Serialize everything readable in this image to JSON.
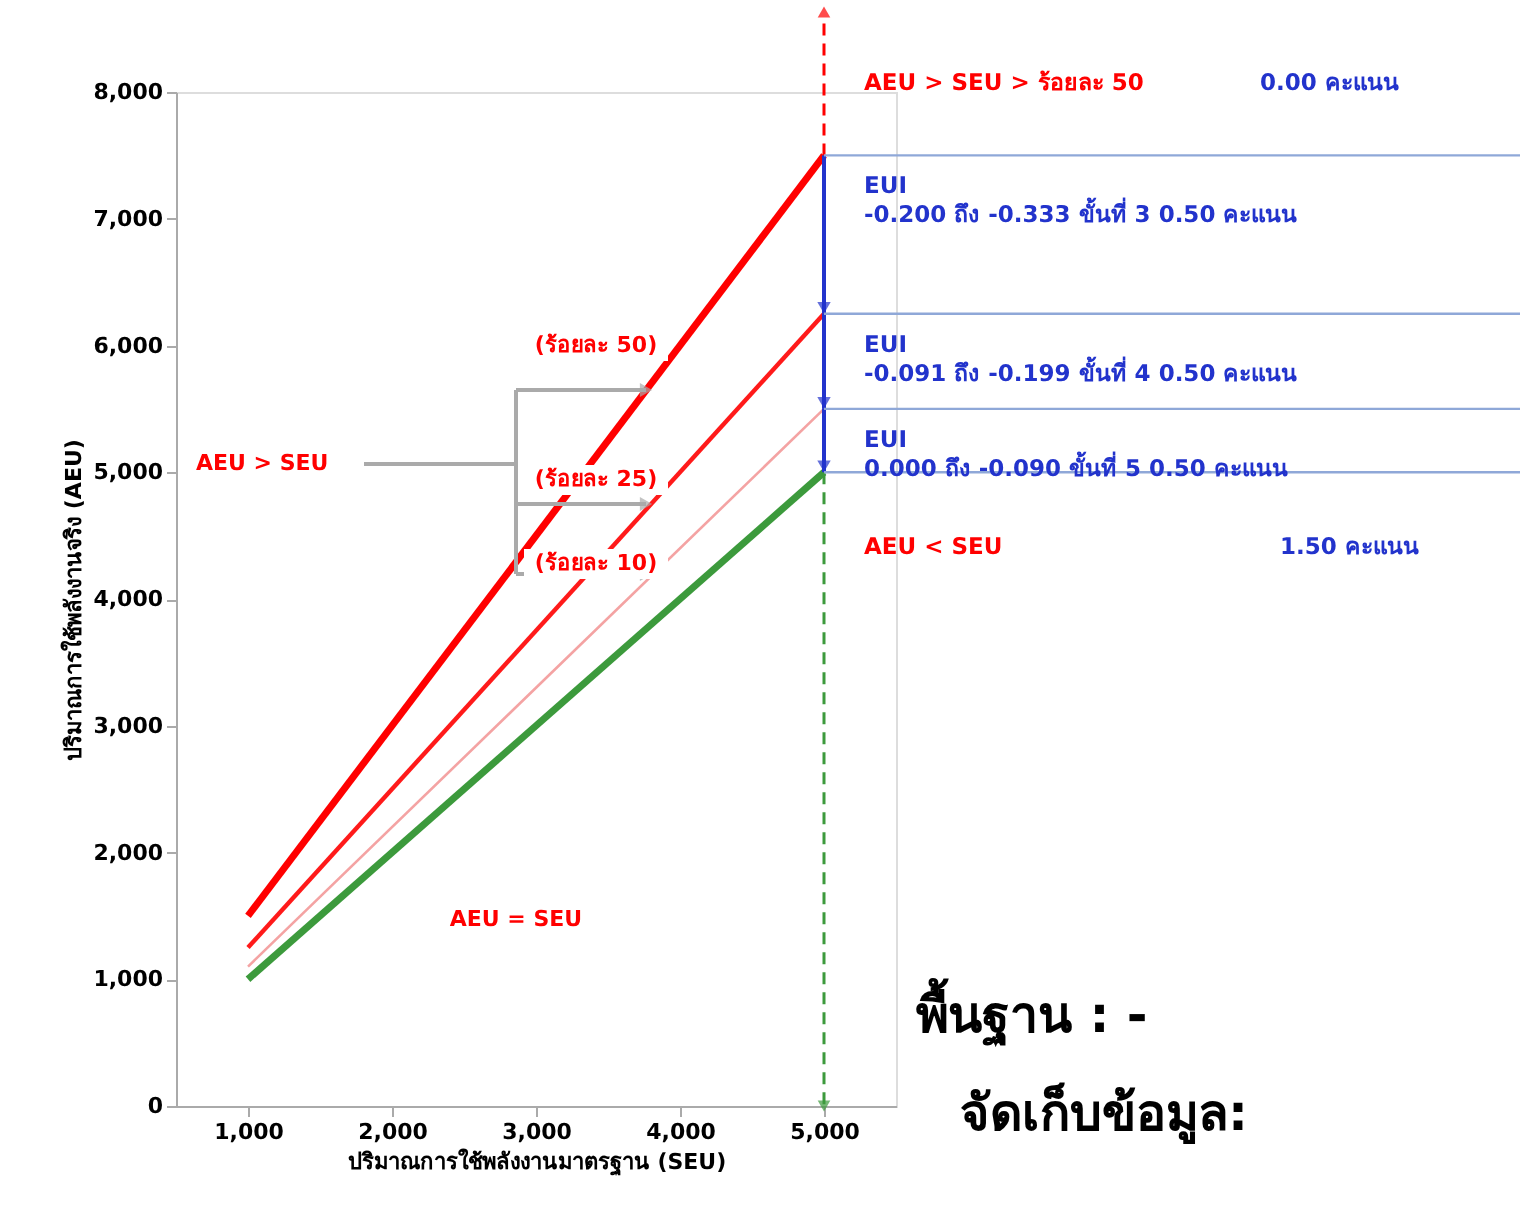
{
  "chart_data": {
    "type": "line",
    "xlabel": "ปริมาณการใช้พลังงานมาตรฐาน (SEU)",
    "ylabel": "ปริมาณการใช้พลังงานจริง (AEU)",
    "x": [
      1000,
      5000
    ],
    "series": [
      {
        "color": "#ff0000",
        "values": [
          1500,
          7500
        ]
      },
      {
        "color": "#ff1a1a",
        "values": [
          1250,
          6250
        ]
      },
      {
        "color": "#f4a3a3",
        "values": [
          1100,
          5500
        ]
      },
      {
        "color": "#3c9a3c",
        "values": [
          1000,
          5000
        ]
      }
    ],
    "xlim": [
      500,
      5500
    ],
    "xticks": [
      {
        "value": 1000,
        "label": "1,000"
      },
      {
        "value": 2000,
        "label": "2,000"
      },
      {
        "value": 3000,
        "label": "3,000"
      },
      {
        "value": 4000,
        "label": "4,000"
      },
      {
        "value": 5000,
        "label": "5,000"
      }
    ],
    "ylim": [
      0,
      8000
    ],
    "yticks": [
      0,
      {
        "value": 1000,
        "label": "1,000"
      },
      {
        "value": 2000,
        "label": "2,000"
      },
      {
        "value": 3000,
        "label": "3,000"
      },
      {
        "value": 4000,
        "label": "4,000"
      },
      {
        "value": 5000,
        "label": "5,000"
      },
      {
        "value": 6000,
        "label": "6,000"
      },
      {
        "value": 7000,
        "label": "7,000"
      },
      {
        "value": 8000,
        "label": "8,000"
      }
    ],
    "ref_lines": [
      {
        "axis": "y",
        "value": 7500,
        "label": null,
        "color": "#8fa8d8",
        "line_style": "solid"
      },
      {
        "axis": "y",
        "value": 6250,
        "label": null,
        "color": "#8fa8d8",
        "line_style": "solid"
      },
      {
        "axis": "y",
        "value": 5500,
        "label": null,
        "color": "#8fa8d8",
        "line_style": "solid"
      },
      {
        "axis": "y",
        "value": 5000,
        "label": null,
        "color": "#8fa8d8",
        "line_style": "solid"
      }
    ],
    "grid": false,
    "marker": "none",
    "line_style": "solid",
    "annotations": [
      "(ร้อยละ 50)",
      "(ร้อยละ 25)",
      "(ร้อยละ 10)",
      "AEU > SEU",
      "AEU = SEU",
      "AEU > SEU > ร้อยละ 50",
      "0.00 คะแนน",
      "EUI\n-0.200 ถึง -0.333    ขั้นที่ 3    0.50 คะแนน",
      "EUI\n-0.091 ถึง -0.199    ขั้นที่ 4    0.50 คะแนน",
      "EUI\n0.000 ถึง -0.090    ขั้นที่ 5    0.50 คะแนน",
      "AEU < SEU",
      "1.50 คะแนน",
      "พื้นฐาน : -",
      "จัดเก็บข้อมูล:"
    ]
  }
}
